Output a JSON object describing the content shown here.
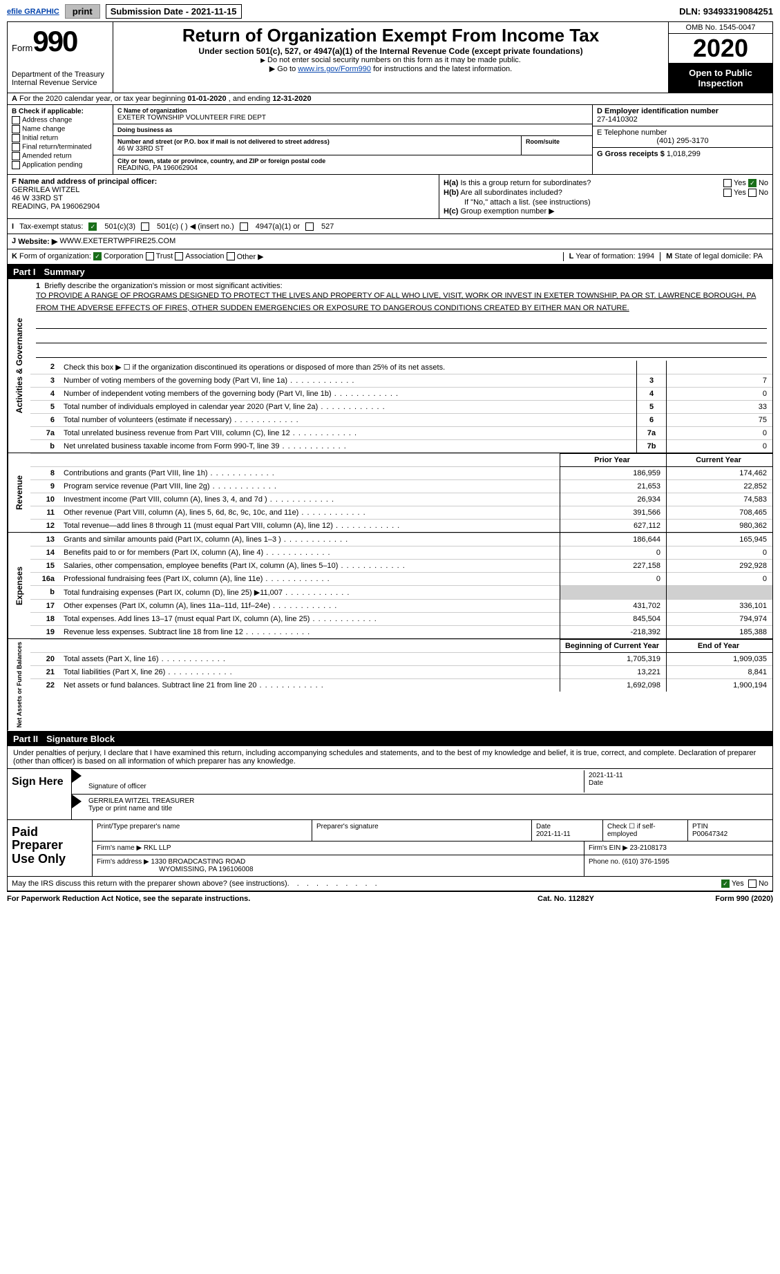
{
  "top_bar": {
    "efile": "efile GRAPHIC",
    "print_btn": "print",
    "sub_date_label": "Submission Date - ",
    "sub_date": "2021-11-15",
    "dln_label": "DLN: ",
    "dln": "93493319084251"
  },
  "header": {
    "form_prefix": "Form",
    "form_num": "990",
    "dept": "Department of the Treasury",
    "irs": "Internal Revenue Service",
    "title": "Return of Organization Exempt From Income Tax",
    "sub1": "Under section 501(c), 527, or 4947(a)(1) of the Internal Revenue Code (except private foundations)",
    "sub2": "Do not enter social security numbers on this form as it may be made public.",
    "sub3_pre": "Go to ",
    "sub3_link": "www.irs.gov/Form990",
    "sub3_post": " for instructions and the latest information.",
    "omb": "OMB No. 1545-0047",
    "year": "2020",
    "open": "Open to Public Inspection"
  },
  "line_a": {
    "prefix": "A",
    "text1": "For the 2020 calendar year, or tax year beginning ",
    "begin": "01-01-2020",
    "text2": "  , and ending ",
    "end": "12-31-2020"
  },
  "box_b": {
    "title": "B Check if applicable:",
    "opts": [
      "Address change",
      "Name change",
      "Initial return",
      "Final return/terminated",
      "Amended return",
      "Application pending"
    ]
  },
  "box_c": {
    "name_lab": "C Name of organization",
    "name": "EXETER TOWNSHIP VOLUNTEER FIRE DEPT",
    "dba_lab": "Doing business as",
    "dba": "",
    "addr_lab": "Number and street (or P.O. box if mail is not delivered to street address)",
    "room_lab": "Room/suite",
    "addr": "46 W 33RD ST",
    "city_lab": "City or town, state or province, country, and ZIP or foreign postal code",
    "city": "READING, PA  196062904"
  },
  "box_d": {
    "ein_lab": "D Employer identification number",
    "ein": "27-1410302",
    "tel_lab": "E Telephone number",
    "tel": "(401) 295-3170",
    "gross_lab": "G Gross receipts $ ",
    "gross": "1,018,299"
  },
  "box_f": {
    "lab": "F Name and address of principal officer:",
    "name": "GERRILEA WITZEL",
    "addr1": "46 W 33RD ST",
    "addr2": "READING, PA  196062904"
  },
  "box_h": {
    "a_lab": "H(a)",
    "a_text": "Is this a group return for subordinates?",
    "b_lab": "H(b)",
    "b_text": "Are all subordinates included?",
    "b_note": "If \"No,\" attach a list. (see instructions)",
    "c_lab": "H(c)",
    "c_text": "Group exemption number ▶",
    "yes": "Yes",
    "no": "No"
  },
  "line_i": {
    "lab": "I",
    "text": "Tax-exempt status:",
    "o1": "501(c)(3)",
    "o2": "501(c) (    ) ◀ (insert no.)",
    "o3": "4947(a)(1) or",
    "o4": "527"
  },
  "line_j": {
    "lab": "J",
    "text": "Website: ▶",
    "val": "WWW.EXETERTWPFIRE25.COM"
  },
  "line_k": {
    "lab": "K",
    "text": "Form of organization:",
    "o1": "Corporation",
    "o2": "Trust",
    "o3": "Association",
    "o4": "Other ▶",
    "l_lab": "L",
    "l_text": "Year of formation: ",
    "l_val": "1994",
    "m_lab": "M",
    "m_text": "State of legal domicile: ",
    "m_val": "PA"
  },
  "part1": {
    "num": "Part I",
    "title": "Summary"
  },
  "mission": {
    "num": "1",
    "lab": "Briefly describe the organization's mission or most significant activities:",
    "text": "TO PROVIDE A RANGE OF PROGRAMS DESIGNED TO PROTECT THE LIVES AND PROPERTY OF ALL WHO LIVE, VISIT, WORK OR INVEST IN EXETER TOWNSHIP, PA OR ST. LAWRENCE BOROUGH, PA FROM THE ADVERSE EFFECTS OF FIRES, OTHER SUDDEN EMERGENCIES OR EXPOSURE TO DANGEROUS CONDITIONS CREATED BY EITHER MAN OR NATURE."
  },
  "gov_lines": [
    {
      "n": "2",
      "d": "Check this box ▶ ☐ if the organization discontinued its operations or disposed of more than 25% of its net assets.",
      "box": "",
      "v": ""
    },
    {
      "n": "3",
      "d": "Number of voting members of the governing body (Part VI, line 1a)",
      "box": "3",
      "v": "7"
    },
    {
      "n": "4",
      "d": "Number of independent voting members of the governing body (Part VI, line 1b)",
      "box": "4",
      "v": "0"
    },
    {
      "n": "5",
      "d": "Total number of individuals employed in calendar year 2020 (Part V, line 2a)",
      "box": "5",
      "v": "33"
    },
    {
      "n": "6",
      "d": "Total number of volunteers (estimate if necessary)",
      "box": "6",
      "v": "75"
    },
    {
      "n": "7a",
      "d": "Total unrelated business revenue from Part VIII, column (C), line 12",
      "box": "7a",
      "v": "0"
    },
    {
      "n": "b",
      "d": "Net unrelated business taxable income from Form 990-T, line 39",
      "box": "7b",
      "v": "0"
    }
  ],
  "col_headers": {
    "prior": "Prior Year",
    "current": "Current Year",
    "boy": "Beginning of Current Year",
    "eoy": "End of Year"
  },
  "rev_lines": [
    {
      "n": "8",
      "d": "Contributions and grants (Part VIII, line 1h)",
      "p": "186,959",
      "c": "174,462"
    },
    {
      "n": "9",
      "d": "Program service revenue (Part VIII, line 2g)",
      "p": "21,653",
      "c": "22,852"
    },
    {
      "n": "10",
      "d": "Investment income (Part VIII, column (A), lines 3, 4, and 7d )",
      "p": "26,934",
      "c": "74,583"
    },
    {
      "n": "11",
      "d": "Other revenue (Part VIII, column (A), lines 5, 6d, 8c, 9c, 10c, and 11e)",
      "p": "391,566",
      "c": "708,465"
    },
    {
      "n": "12",
      "d": "Total revenue—add lines 8 through 11 (must equal Part VIII, column (A), line 12)",
      "p": "627,112",
      "c": "980,362"
    }
  ],
  "exp_lines": [
    {
      "n": "13",
      "d": "Grants and similar amounts paid (Part IX, column (A), lines 1–3 )",
      "p": "186,644",
      "c": "165,945"
    },
    {
      "n": "14",
      "d": "Benefits paid to or for members (Part IX, column (A), line 4)",
      "p": "0",
      "c": "0"
    },
    {
      "n": "15",
      "d": "Salaries, other compensation, employee benefits (Part IX, column (A), lines 5–10)",
      "p": "227,158",
      "c": "292,928"
    },
    {
      "n": "16a",
      "d": "Professional fundraising fees (Part IX, column (A), line 11e)",
      "p": "0",
      "c": "0"
    },
    {
      "n": "b",
      "d": "Total fundraising expenses (Part IX, column (D), line 25) ▶11,007",
      "p": "shaded",
      "c": "shaded"
    },
    {
      "n": "17",
      "d": "Other expenses (Part IX, column (A), lines 11a–11d, 11f–24e)",
      "p": "431,702",
      "c": "336,101"
    },
    {
      "n": "18",
      "d": "Total expenses. Add lines 13–17 (must equal Part IX, column (A), line 25)",
      "p": "845,504",
      "c": "794,974"
    },
    {
      "n": "19",
      "d": "Revenue less expenses. Subtract line 18 from line 12",
      "p": "-218,392",
      "c": "185,388"
    }
  ],
  "net_lines": [
    {
      "n": "20",
      "d": "Total assets (Part X, line 16)",
      "p": "1,705,319",
      "c": "1,909,035"
    },
    {
      "n": "21",
      "d": "Total liabilities (Part X, line 26)",
      "p": "13,221",
      "c": "8,841"
    },
    {
      "n": "22",
      "d": "Net assets or fund balances. Subtract line 21 from line 20",
      "p": "1,692,098",
      "c": "1,900,194"
    }
  ],
  "vlabels": {
    "ag": "Activities & Governance",
    "rev": "Revenue",
    "exp": "Expenses",
    "net": "Net Assets or Fund Balances"
  },
  "part2": {
    "num": "Part II",
    "title": "Signature Block"
  },
  "sig_intro": "Under penalties of perjury, I declare that I have examined this return, including accompanying schedules and statements, and to the best of my knowledge and belief, it is true, correct, and complete. Declaration of preparer (other than officer) is based on all information of which preparer has any knowledge.",
  "sign_here": "Sign Here",
  "sig1_lab": "Signature of officer",
  "sig1_date": "2021-11-11",
  "sig1_date_lab": "Date",
  "sig2_name": "GERRILEA WITZEL TREASURER",
  "sig2_lab": "Type or print name and title",
  "paid_prep": "Paid Preparer Use Only",
  "prep": {
    "name_lab": "Print/Type preparer's name",
    "sign_lab": "Preparer's signature",
    "date_lab": "Date",
    "date": "2021-11-11",
    "check_lab": "Check ☐ if self-employed",
    "ptin_lab": "PTIN",
    "ptin": "P00647342",
    "firm_name_lab": "Firm's name   ▶",
    "firm_name": "RKL LLP",
    "firm_ein_lab": "Firm's EIN ▶",
    "firm_ein": "23-2108173",
    "firm_addr_lab": "Firm's address ▶",
    "firm_addr1": "1330 BROADCASTING ROAD",
    "firm_addr2": "WYOMISSING, PA  196106008",
    "phone_lab": "Phone no. ",
    "phone": "(610) 376-1595"
  },
  "may_irs": "May the IRS discuss this return with the preparer shown above? (see instructions)",
  "footer": {
    "left": "For Paperwork Reduction Act Notice, see the separate instructions.",
    "mid": "Cat. No. 11282Y",
    "right": "Form 990 (2020)"
  }
}
